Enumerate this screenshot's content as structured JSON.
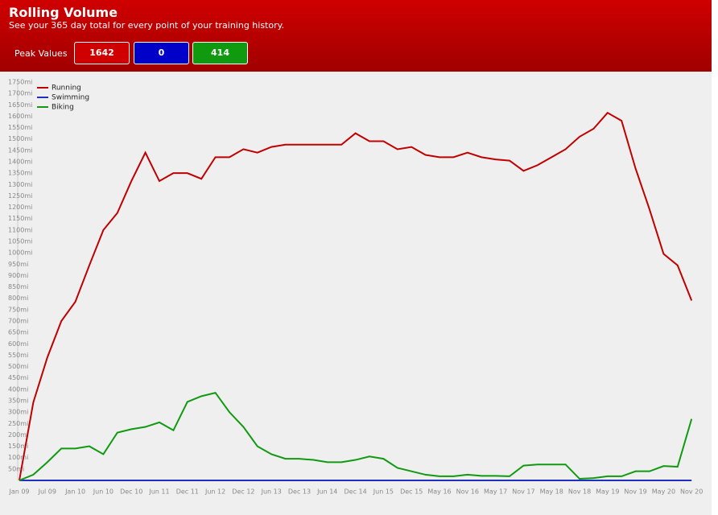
{
  "header": {
    "title": "Rolling Volume",
    "subtitle": "See your 365 day total for every point of your training history.",
    "peak_label": "Peak Values",
    "peaks": [
      1642,
      0,
      414
    ]
  },
  "chart_data": {
    "type": "line",
    "legend": "top-left",
    "grid": false,
    "categories": [
      "Jan 09",
      null,
      "Jul 09",
      null,
      "Jan 10",
      null,
      "Jun 10",
      null,
      "Dec 10",
      null,
      "Jun 11",
      null,
      "Dec 11",
      null,
      "Jun 12",
      null,
      "Dec 12",
      null,
      "Jun 13",
      null,
      "Dec 13",
      null,
      "Jun 14",
      null,
      "Dec 14",
      null,
      "Jun 15",
      null,
      "Dec 15",
      null,
      "May 16",
      null,
      "Nov 16",
      null,
      "May 17",
      null,
      "Nov 17",
      null,
      "May 18",
      null,
      "Nov 18",
      null,
      "May 19",
      null,
      "Nov 19",
      null,
      "May 20",
      null,
      "Nov 20"
    ],
    "ylim": [
      0,
      1750
    ],
    "yticks": [
      {
        "value": 50,
        "label": "50mi"
      },
      {
        "value": 100,
        "label": "100mi"
      },
      {
        "value": 150,
        "label": "150mi"
      },
      {
        "value": 200,
        "label": "200mi"
      },
      {
        "value": 250,
        "label": "250mi"
      },
      {
        "value": 300,
        "label": "300mi"
      },
      {
        "value": 350,
        "label": "350mi"
      },
      {
        "value": 400,
        "label": "400mi"
      },
      {
        "value": 450,
        "label": "450mi"
      },
      {
        "value": 500,
        "label": "500mi"
      },
      {
        "value": 550,
        "label": "550mi"
      },
      {
        "value": 600,
        "label": "600mi"
      },
      {
        "value": 650,
        "label": "650mi"
      },
      {
        "value": 700,
        "label": "700mi"
      },
      {
        "value": 750,
        "label": "750mi"
      },
      {
        "value": 800,
        "label": "800mi"
      },
      {
        "value": 850,
        "label": "850mi"
      },
      {
        "value": 900,
        "label": "900mi"
      },
      {
        "value": 950,
        "label": "950mi"
      },
      {
        "value": 1000,
        "label": "1000mi"
      },
      {
        "value": 1050,
        "label": "1050mi"
      },
      {
        "value": 1100,
        "label": "1100mi"
      },
      {
        "value": 1150,
        "label": "1150mi"
      },
      {
        "value": 1200,
        "label": "1200mi"
      },
      {
        "value": 1250,
        "label": "1250mi"
      },
      {
        "value": 1300,
        "label": "1300mi"
      },
      {
        "value": 1350,
        "label": "1350mi"
      },
      {
        "value": 1400,
        "label": "1400mi"
      },
      {
        "value": 1450,
        "label": "1450mi"
      },
      {
        "value": 1500,
        "label": "1500mi"
      },
      {
        "value": 1550,
        "label": "1550mi"
      },
      {
        "value": 1600,
        "label": "1600mi"
      },
      {
        "value": 1650,
        "label": "1650mi"
      },
      {
        "value": 1700,
        "label": "1700mi"
      },
      {
        "value": 1750,
        "label": "1750mi"
      }
    ],
    "series": [
      {
        "name": "Running",
        "color": "#c00000",
        "values": [
          0,
          343,
          540,
          700,
          785,
          945,
          1100,
          1175,
          1315,
          1440,
          1315,
          1350,
          1350,
          1325,
          1420,
          1420,
          1455,
          1440,
          1465,
          1475,
          1475,
          1475,
          1475,
          1475,
          1525,
          1490,
          1490,
          1455,
          1465,
          1430,
          1420,
          1420,
          1440,
          1420,
          1410,
          1405,
          1360,
          1385,
          1420,
          1455,
          1510,
          1545,
          1615,
          1580,
          1370,
          1190,
          995,
          945,
          790
        ]
      },
      {
        "name": "Swimming",
        "color": "#1f2fbf",
        "values": [
          0,
          0,
          0,
          0,
          0,
          0,
          0,
          0,
          0,
          0,
          0,
          0,
          0,
          0,
          0,
          0,
          0,
          0,
          0,
          0,
          0,
          0,
          0,
          0,
          0,
          0,
          0,
          0,
          0,
          0,
          0,
          0,
          0,
          0,
          0,
          0,
          0,
          0,
          0,
          0,
          0,
          0,
          0,
          0,
          0,
          0,
          0,
          0,
          0
        ]
      },
      {
        "name": "Biking",
        "color": "#109a10",
        "values": [
          0,
          25,
          80,
          140,
          140,
          150,
          115,
          210,
          225,
          235,
          255,
          220,
          345,
          370,
          385,
          300,
          235,
          150,
          115,
          95,
          95,
          90,
          80,
          80,
          90,
          105,
          95,
          55,
          40,
          25,
          18,
          18,
          25,
          20,
          20,
          18,
          65,
          70,
          70,
          70,
          7,
          10,
          18,
          18,
          40,
          40,
          63,
          60,
          270
        ]
      }
    ]
  }
}
